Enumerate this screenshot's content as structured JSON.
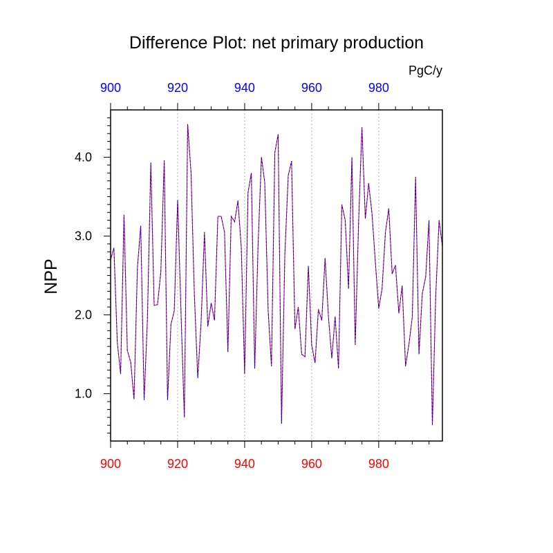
{
  "chart_data": {
    "type": "line",
    "title": "Difference Plot: net primary production",
    "units_label": "PgC/y",
    "ylabel": "NPP",
    "xlabel": "",
    "xlim": [
      900,
      999
    ],
    "ylim": [
      0.4,
      4.6
    ],
    "top_axis_ticks": [
      "900",
      "920",
      "940",
      "960",
      "980"
    ],
    "bottom_axis_ticks": [
      "900",
      "920",
      "940",
      "960",
      "980"
    ],
    "y_ticks": [
      "1.0",
      "2.0",
      "3.0",
      "4.0"
    ],
    "y_tick_values": [
      1.0,
      2.0,
      3.0,
      4.0
    ],
    "x_tick_values": [
      900,
      920,
      940,
      960,
      980
    ],
    "grid": "vertical dashed at major x ticks",
    "colors": {
      "top_axis_labels": "#0000ff",
      "bottom_axis_labels": "#ff0000",
      "series_a": "#ff0000",
      "series_b": "#0000ff",
      "grid": "#b0b0b0"
    },
    "x": [
      900,
      901,
      902,
      903,
      904,
      905,
      906,
      907,
      908,
      909,
      910,
      911,
      912,
      913,
      914,
      915,
      916,
      917,
      918,
      919,
      920,
      921,
      922,
      923,
      924,
      925,
      926,
      927,
      928,
      929,
      930,
      931,
      932,
      933,
      934,
      935,
      936,
      937,
      938,
      939,
      940,
      941,
      942,
      943,
      944,
      945,
      946,
      947,
      948,
      949,
      950,
      951,
      952,
      953,
      954,
      955,
      956,
      957,
      958,
      959,
      960,
      961,
      962,
      963,
      964,
      965,
      966,
      967,
      968,
      969,
      970,
      971,
      972,
      973,
      974,
      975,
      976,
      977,
      978,
      979,
      980,
      981,
      982,
      983,
      984,
      985,
      986,
      987,
      988,
      989,
      990,
      991,
      992,
      993,
      994,
      995,
      996,
      997,
      998,
      999
    ],
    "series": [
      {
        "values": [
          2.7,
          2.85,
          1.65,
          1.25,
          3.27,
          1.55,
          1.4,
          0.93,
          2.6,
          3.13,
          0.92,
          1.95,
          3.93,
          2.12,
          2.13,
          2.55,
          3.96,
          0.92,
          1.88,
          2.05,
          3.46,
          2.05,
          0.7,
          4.42,
          3.8,
          2.25,
          1.2,
          1.9,
          3.05,
          1.85,
          2.15,
          1.93,
          3.25,
          3.25,
          3.05,
          1.53,
          3.25,
          3.18,
          3.45,
          2.85,
          1.25,
          3.55,
          3.8,
          1.32,
          2.87,
          4.0,
          3.68,
          2.06,
          1.35,
          4.06,
          4.29,
          0.62,
          2.77,
          3.77,
          3.95,
          1.82,
          2.1,
          1.5,
          1.47,
          2.62,
          1.62,
          1.39,
          2.07,
          1.93,
          2.72,
          1.97,
          1.45,
          1.98,
          1.32,
          3.4,
          3.2,
          2.33,
          4.0,
          1.62,
          3.18,
          4.38,
          3.22,
          3.67,
          3.28,
          2.67,
          2.08,
          2.33,
          3.05,
          3.35,
          2.52,
          2.63,
          2.02,
          2.37,
          1.35,
          1.62,
          1.97,
          3.75,
          1.5,
          2.27,
          2.48,
          3.2,
          0.6,
          2.23,
          3.2,
          2.87
        ]
      },
      {
        "values": [
          2.7,
          2.85,
          1.65,
          1.25,
          3.27,
          1.55,
          1.4,
          0.93,
          2.6,
          3.13,
          0.92,
          1.95,
          3.93,
          2.12,
          2.13,
          2.55,
          3.96,
          0.92,
          1.88,
          2.05,
          3.46,
          2.05,
          0.7,
          4.42,
          3.8,
          2.25,
          1.2,
          1.9,
          3.05,
          1.85,
          2.15,
          1.93,
          3.25,
          3.25,
          3.05,
          1.53,
          3.25,
          3.18,
          3.45,
          2.85,
          1.25,
          3.55,
          3.8,
          1.32,
          2.87,
          4.0,
          3.68,
          2.06,
          1.35,
          4.06,
          4.29,
          0.62,
          2.77,
          3.77,
          3.95,
          1.82,
          2.1,
          1.5,
          1.47,
          2.62,
          1.62,
          1.39,
          2.07,
          1.93,
          2.72,
          1.97,
          1.45,
          1.98,
          1.32,
          3.4,
          3.2,
          2.33,
          4.0,
          1.62,
          3.18,
          4.38,
          3.22,
          3.67,
          3.28,
          2.67,
          2.08,
          2.33,
          3.05,
          3.35,
          2.52,
          2.63,
          2.02,
          2.37,
          1.35,
          1.62,
          1.97,
          3.75,
          1.5,
          2.27,
          2.48,
          3.2,
          0.6,
          2.23,
          3.2,
          2.87
        ]
      }
    ]
  }
}
